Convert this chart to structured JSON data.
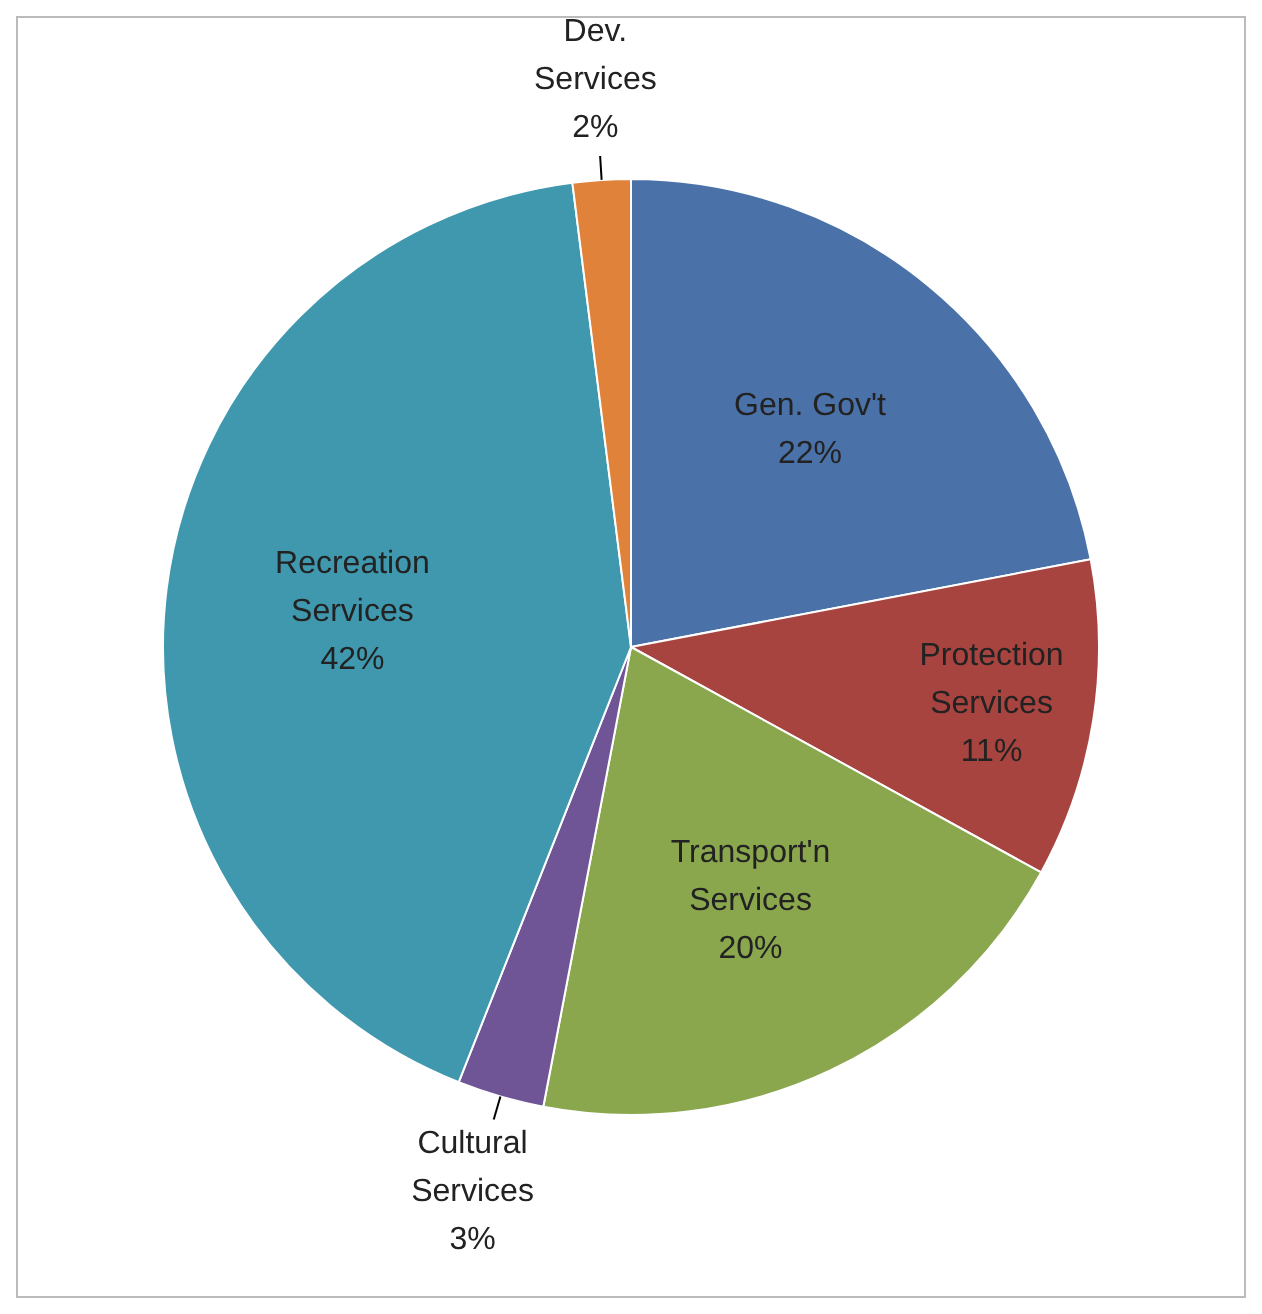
{
  "chart_data": {
    "type": "pie",
    "categories": [
      "Gen. Gov't",
      "Protection Services",
      "Transport'n Services",
      "Cultural Services",
      "Recreation Services",
      "Dev. Services"
    ],
    "values": [
      22,
      11,
      20,
      3,
      42,
      2
    ],
    "value_labels": [
      "22%",
      "11%",
      "20%",
      "3%",
      "42%",
      "2%"
    ],
    "colors": [
      "#4a72a8",
      "#a8443f",
      "#8aa74e",
      "#6f5596",
      "#3f98ae",
      "#e0823a"
    ],
    "legend": false
  }
}
